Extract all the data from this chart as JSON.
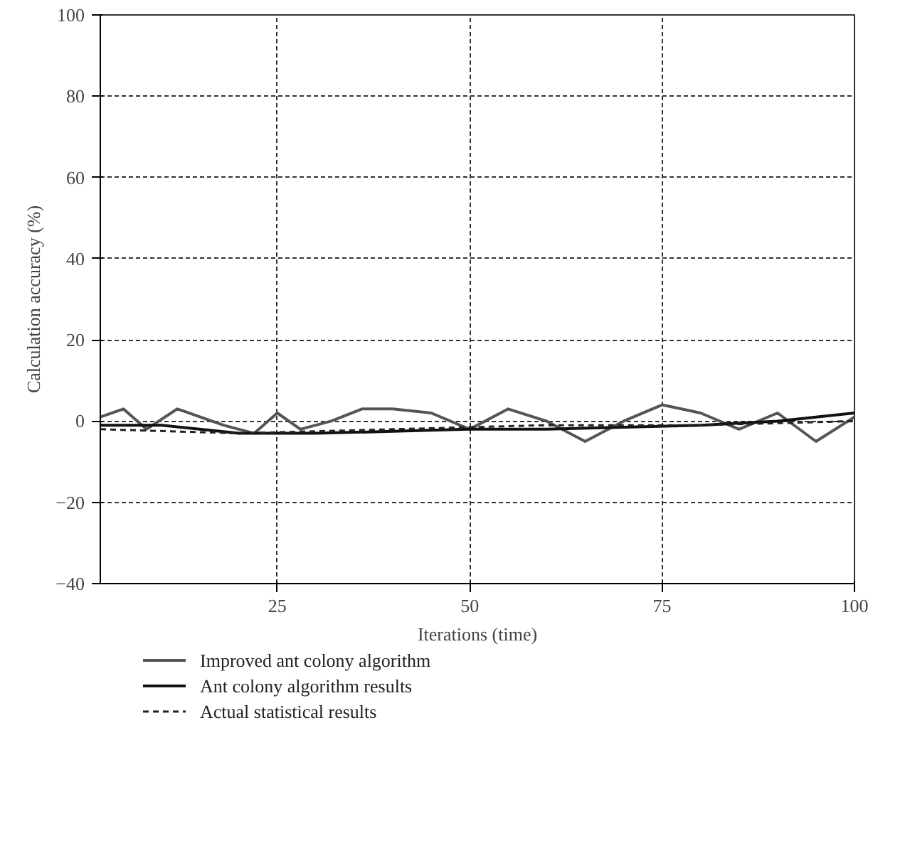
{
  "chart_data": {
    "type": "line",
    "xlabel": "Iterations (time)",
    "ylabel": "Calculation accuracy (%)",
    "xlim": [
      2,
      100
    ],
    "ylim": [
      -40,
      100
    ],
    "xticks": [
      25,
      50,
      75,
      100
    ],
    "yticks": [
      -40,
      -20,
      0,
      20,
      40,
      60,
      80,
      100
    ],
    "grid": true,
    "legend": "bottom",
    "series": [
      {
        "name": "Improved ant colony algorithm",
        "color": "#555555",
        "line_style": "solid",
        "x": [
          2,
          5,
          8,
          12,
          15,
          18,
          22,
          25,
          28,
          32,
          36,
          40,
          45,
          50,
          55,
          60,
          65,
          70,
          75,
          80,
          85,
          90,
          95,
          100
        ],
        "values": [
          1,
          3,
          -2,
          3,
          1,
          -1,
          -3,
          2,
          -2,
          0,
          3,
          3,
          2,
          -2,
          3,
          0,
          -5,
          0,
          4,
          2,
          -2,
          2,
          -5,
          1
        ]
      },
      {
        "name": "Ant colony algorithm results",
        "color": "#111111",
        "line_style": "solid",
        "x": [
          2,
          10,
          20,
          30,
          40,
          50,
          60,
          70,
          80,
          90,
          100
        ],
        "values": [
          -1,
          -1,
          -3,
          -3,
          -2.5,
          -2,
          -2,
          -1.5,
          -1,
          0,
          2
        ]
      },
      {
        "name": "Actual statistical results",
        "color": "#222222",
        "line_style": "dashed",
        "x": [
          2,
          20,
          40,
          60,
          80,
          100
        ],
        "values": [
          -2,
          -3,
          -2,
          -1,
          -1,
          0
        ]
      }
    ]
  }
}
